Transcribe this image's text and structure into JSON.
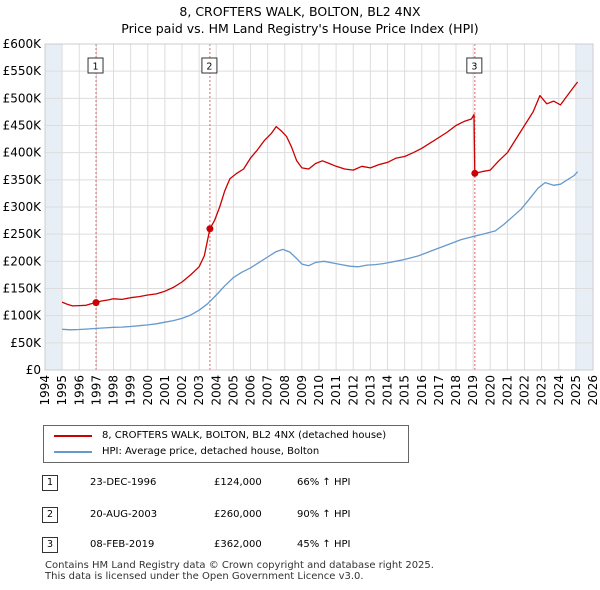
{
  "title": {
    "line1": "8, CROFTERS WALK, BOLTON, BL2 4NX",
    "line2": "Price paid vs. HM Land Registry's House Price Index (HPI)"
  },
  "colors": {
    "property": "#cc0000",
    "hpi": "#6699cc",
    "grid": "#dddddd",
    "plot_bg": "#ffffff",
    "shade": "#e8eef6",
    "vline": "#e06666"
  },
  "chart_data": {
    "type": "line",
    "xlim": [
      1994,
      2026
    ],
    "ylim": [
      0,
      600000
    ],
    "x_ticks": [
      "1994",
      "1995",
      "1996",
      "1997",
      "1998",
      "1999",
      "2000",
      "2001",
      "2002",
      "2003",
      "2004",
      "2005",
      "2006",
      "2007",
      "2008",
      "2009",
      "2010",
      "2011",
      "2012",
      "2013",
      "2014",
      "2015",
      "2016",
      "2017",
      "2018",
      "2019",
      "2020",
      "2021",
      "2022",
      "2023",
      "2024",
      "2025",
      "2026"
    ],
    "y_ticks": [
      {
        "value": 0,
        "label": "£0"
      },
      {
        "value": 50000,
        "label": "£50K"
      },
      {
        "value": 100000,
        "label": "£100K"
      },
      {
        "value": 150000,
        "label": "£150K"
      },
      {
        "value": 200000,
        "label": "£200K"
      },
      {
        "value": 250000,
        "label": "£250K"
      },
      {
        "value": 300000,
        "label": "£300K"
      },
      {
        "value": 350000,
        "label": "£350K"
      },
      {
        "value": 400000,
        "label": "£400K"
      },
      {
        "value": 450000,
        "label": "£450K"
      },
      {
        "value": 500000,
        "label": "£500K"
      },
      {
        "value": 550000,
        "label": "£550K"
      },
      {
        "value": 600000,
        "label": "£600K"
      }
    ],
    "shaded_ranges": [
      [
        1994,
        1995
      ],
      [
        2025,
        2026
      ]
    ],
    "sale_markers": [
      {
        "label": "1",
        "x": 1996.98,
        "y": 124000
      },
      {
        "label": "2",
        "x": 2003.63,
        "y": 260000
      },
      {
        "label": "3",
        "x": 2019.1,
        "y": 362000
      }
    ],
    "series": [
      {
        "name": "8, CROFTERS WALK, BOLTON, BL2 4NX (detached house)",
        "color": "#cc0000",
        "points": [
          [
            1995.0,
            125000
          ],
          [
            1995.3,
            121000
          ],
          [
            1995.6,
            118000
          ],
          [
            1996.0,
            118500
          ],
          [
            1996.4,
            119000
          ],
          [
            1996.7,
            122000
          ],
          [
            1996.98,
            124000
          ],
          [
            1997.3,
            127000
          ],
          [
            1997.7,
            129000
          ],
          [
            1998.0,
            131000
          ],
          [
            1998.5,
            130000
          ],
          [
            1999.0,
            133000
          ],
          [
            1999.5,
            135000
          ],
          [
            2000.0,
            138000
          ],
          [
            2000.5,
            140000
          ],
          [
            2001.0,
            145000
          ],
          [
            2001.5,
            152000
          ],
          [
            2002.0,
            162000
          ],
          [
            2002.5,
            175000
          ],
          [
            2003.0,
            190000
          ],
          [
            2003.3,
            210000
          ],
          [
            2003.63,
            260000
          ],
          [
            2003.9,
            275000
          ],
          [
            2004.2,
            300000
          ],
          [
            2004.5,
            330000
          ],
          [
            2004.8,
            352000
          ],
          [
            2005.2,
            362000
          ],
          [
            2005.6,
            370000
          ],
          [
            2006.0,
            390000
          ],
          [
            2006.4,
            405000
          ],
          [
            2006.8,
            422000
          ],
          [
            2007.2,
            435000
          ],
          [
            2007.5,
            448000
          ],
          [
            2007.8,
            440000
          ],
          [
            2008.1,
            430000
          ],
          [
            2008.4,
            410000
          ],
          [
            2008.7,
            385000
          ],
          [
            2009.0,
            372000
          ],
          [
            2009.4,
            370000
          ],
          [
            2009.8,
            380000
          ],
          [
            2010.2,
            385000
          ],
          [
            2010.6,
            380000
          ],
          [
            2011.0,
            375000
          ],
          [
            2011.5,
            370000
          ],
          [
            2012.0,
            368000
          ],
          [
            2012.5,
            375000
          ],
          [
            2013.0,
            372000
          ],
          [
            2013.5,
            378000
          ],
          [
            2014.0,
            382000
          ],
          [
            2014.5,
            390000
          ],
          [
            2015.0,
            393000
          ],
          [
            2015.5,
            400000
          ],
          [
            2016.0,
            408000
          ],
          [
            2016.5,
            418000
          ],
          [
            2017.0,
            428000
          ],
          [
            2017.5,
            438000
          ],
          [
            2018.0,
            450000
          ],
          [
            2018.5,
            458000
          ],
          [
            2018.9,
            462000
          ],
          [
            2019.05,
            470000
          ],
          [
            2019.1,
            362000
          ],
          [
            2019.5,
            365000
          ],
          [
            2020.0,
            368000
          ],
          [
            2020.5,
            385000
          ],
          [
            2021.0,
            400000
          ],
          [
            2021.5,
            425000
          ],
          [
            2022.0,
            450000
          ],
          [
            2022.5,
            475000
          ],
          [
            2022.9,
            505000
          ],
          [
            2023.3,
            490000
          ],
          [
            2023.7,
            495000
          ],
          [
            2024.1,
            488000
          ],
          [
            2024.5,
            505000
          ],
          [
            2024.9,
            522000
          ],
          [
            2025.1,
            530000
          ]
        ]
      },
      {
        "name": "HPI: Average price, detached house, Bolton",
        "color": "#6699cc",
        "points": [
          [
            1995.0,
            75000
          ],
          [
            1995.5,
            74000
          ],
          [
            1996.0,
            74500
          ],
          [
            1996.5,
            75500
          ],
          [
            1997.0,
            76500
          ],
          [
            1997.5,
            77500
          ],
          [
            1998.0,
            78500
          ],
          [
            1998.5,
            79000
          ],
          [
            1999.0,
            80000
          ],
          [
            1999.5,
            81500
          ],
          [
            2000.0,
            83000
          ],
          [
            2000.5,
            85000
          ],
          [
            2001.0,
            88000
          ],
          [
            2001.5,
            91000
          ],
          [
            2002.0,
            95000
          ],
          [
            2002.5,
            101000
          ],
          [
            2003.0,
            110000
          ],
          [
            2003.5,
            122000
          ],
          [
            2004.0,
            138000
          ],
          [
            2004.5,
            155000
          ],
          [
            2005.0,
            170000
          ],
          [
            2005.5,
            180000
          ],
          [
            2006.0,
            188000
          ],
          [
            2006.5,
            198000
          ],
          [
            2007.0,
            208000
          ],
          [
            2007.5,
            218000
          ],
          [
            2007.9,
            222000
          ],
          [
            2008.3,
            217000
          ],
          [
            2008.7,
            205000
          ],
          [
            2009.0,
            195000
          ],
          [
            2009.4,
            192000
          ],
          [
            2009.8,
            198000
          ],
          [
            2010.3,
            200000
          ],
          [
            2010.8,
            197000
          ],
          [
            2011.3,
            194000
          ],
          [
            2011.8,
            191000
          ],
          [
            2012.3,
            190000
          ],
          [
            2012.8,
            193000
          ],
          [
            2013.3,
            194000
          ],
          [
            2013.8,
            196000
          ],
          [
            2014.3,
            199000
          ],
          [
            2014.8,
            202000
          ],
          [
            2015.3,
            206000
          ],
          [
            2015.8,
            210000
          ],
          [
            2016.3,
            216000
          ],
          [
            2016.8,
            222000
          ],
          [
            2017.3,
            228000
          ],
          [
            2017.8,
            234000
          ],
          [
            2018.3,
            240000
          ],
          [
            2018.8,
            244000
          ],
          [
            2019.3,
            248000
          ],
          [
            2019.8,
            252000
          ],
          [
            2020.3,
            256000
          ],
          [
            2020.8,
            268000
          ],
          [
            2021.3,
            282000
          ],
          [
            2021.8,
            296000
          ],
          [
            2022.3,
            315000
          ],
          [
            2022.8,
            335000
          ],
          [
            2023.2,
            345000
          ],
          [
            2023.7,
            340000
          ],
          [
            2024.1,
            342000
          ],
          [
            2024.5,
            350000
          ],
          [
            2024.9,
            358000
          ],
          [
            2025.1,
            365000
          ]
        ]
      }
    ]
  },
  "legend": {
    "property_label": "8, CROFTERS WALK, BOLTON, BL2 4NX (detached house)",
    "hpi_label": "HPI: Average price, detached house, Bolton"
  },
  "sales": [
    {
      "num": "1",
      "date": "23-DEC-1996",
      "price": "£124,000",
      "hpi": "66% ↑ HPI"
    },
    {
      "num": "2",
      "date": "20-AUG-2003",
      "price": "£260,000",
      "hpi": "90% ↑ HPI"
    },
    {
      "num": "3",
      "date": "08-FEB-2019",
      "price": "£362,000",
      "hpi": "45% ↑ HPI"
    }
  ],
  "footer": {
    "line1": "Contains HM Land Registry data © Crown copyright and database right 2025.",
    "line2": "This data is licensed under the Open Government Licence v3.0."
  }
}
